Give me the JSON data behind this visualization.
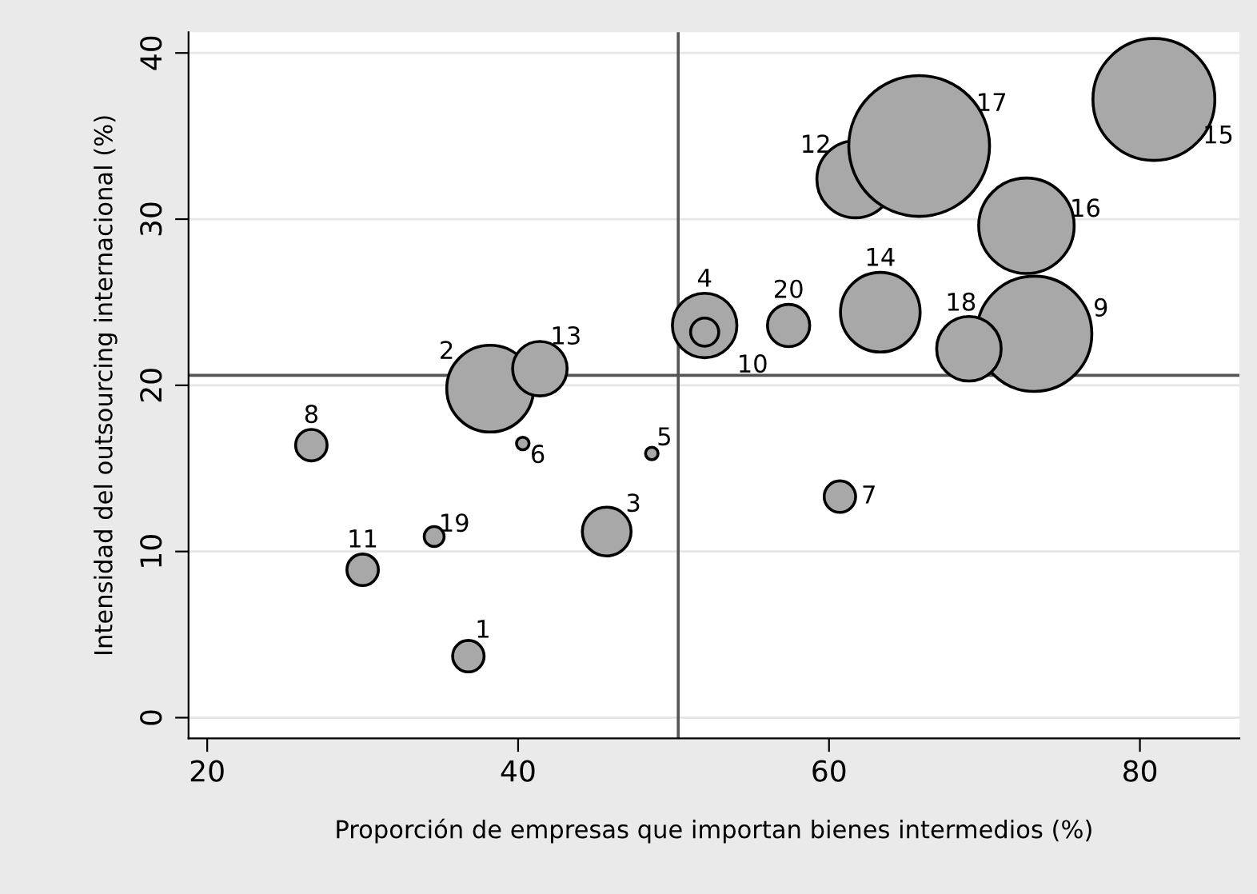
{
  "chart_data": {
    "type": "bubble",
    "xlabel": "Proporción de empresas que importan bienes intermedios (%)",
    "ylabel": "Intensidad del outsourcing internacional (%)",
    "x": [
      36.8,
      38.2,
      45.7,
      52.0,
      48.6,
      40.3,
      60.7,
      26.7,
      73.2,
      52.0,
      30.0,
      61.7,
      41.4,
      63.3,
      80.9,
      72.7,
      65.8,
      69.0,
      34.6,
      57.4
    ],
    "values": [
      3.7,
      19.8,
      11.2,
      23.6,
      15.9,
      16.5,
      13.3,
      16.4,
      23.1,
      23.2,
      8.9,
      32.4,
      21.0,
      24.4,
      37.2,
      29.6,
      34.4,
      22.2,
      10.9,
      23.6
    ],
    "sizes": [
      0.05,
      0.38,
      0.12,
      0.21,
      0.008,
      0.008,
      0.05,
      0.05,
      0.67,
      0.04,
      0.05,
      0.3,
      0.15,
      0.32,
      0.75,
      0.46,
      1,
      0.21,
      0.02,
      0.09
    ],
    "color": "#a8a8a8",
    "annotations": [
      {
        "text": "1",
        "x": 36.8,
        "y": 3.7
      },
      {
        "text": "2",
        "x": 38.2,
        "y": 19.8
      },
      {
        "text": "3",
        "x": 45.7,
        "y": 11.2
      },
      {
        "text": "4",
        "x": 52.0,
        "y": 23.6
      },
      {
        "text": "5",
        "x": 48.6,
        "y": 15.9
      },
      {
        "text": "6",
        "x": 40.3,
        "y": 16.5
      },
      {
        "text": "7",
        "x": 60.7,
        "y": 13.3
      },
      {
        "text": "8",
        "x": 26.7,
        "y": 16.4
      },
      {
        "text": "9",
        "x": 73.2,
        "y": 23.1
      },
      {
        "text": "10",
        "x": 52.0,
        "y": 23.2
      },
      {
        "text": "11",
        "x": 30.0,
        "y": 8.9
      },
      {
        "text": "12",
        "x": 61.7,
        "y": 32.4
      },
      {
        "text": "13",
        "x": 41.4,
        "y": 21.0
      },
      {
        "text": "14",
        "x": 63.3,
        "y": 24.4
      },
      {
        "text": "15",
        "x": 80.9,
        "y": 37.2
      },
      {
        "text": "16",
        "x": 72.7,
        "y": 29.6
      },
      {
        "text": "17",
        "x": 65.8,
        "y": 34.4
      },
      {
        "text": "18",
        "x": 69.0,
        "y": 22.2
      },
      {
        "text": "19",
        "x": 34.6,
        "y": 10.9
      },
      {
        "text": "20",
        "x": 57.4,
        "y": 23.6
      }
    ],
    "ref_lines": [
      {
        "axis": "x",
        "value": 50.3,
        "color": "#555555"
      },
      {
        "axis": "y",
        "value": 20.6,
        "color": "#555555"
      }
    ],
    "xlim": [
      18.8,
      86.4
    ],
    "ylim": [
      -1.25,
      41.25
    ],
    "xticks": [
      20,
      40,
      60,
      80
    ],
    "yticks": [
      0,
      10,
      20,
      30,
      40
    ],
    "grid": "y"
  }
}
